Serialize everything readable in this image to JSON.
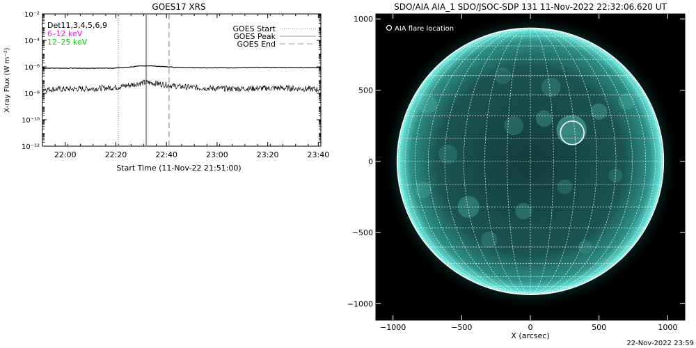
{
  "left_plot": {
    "title": "GOES17 XRS",
    "ylabel": "X-ray Flux (W m⁻²)",
    "xlabel": "Start Time (11-Nov-22 21:51:00)",
    "det_label": "Det11,3,4,5,6,9",
    "band_labels": [
      {
        "text": "6–12 keV",
        "color": "#ff00ff"
      },
      {
        "text": "12–25 keV",
        "color": "#00cc00"
      }
    ],
    "legend": [
      {
        "label": "GOES Start",
        "style": "dotted"
      },
      {
        "label": "GOES Peak",
        "style": "solid"
      },
      {
        "label": "GOES End",
        "style": "dashed"
      }
    ]
  },
  "right_plot": {
    "title": "SDO/AIA AIA_1 SDO/JSOC-SDP 131 11-Nov-2022 22:32:06.620 UT",
    "legend_label": "AIA flare location",
    "xlabel": "X (arcsec)",
    "timestamp": "22-Nov-2022 23:59"
  },
  "chart_data": [
    {
      "type": "line",
      "title": "GOES17 XRS",
      "xlabel": "Start Time (11-Nov-22 21:51:00)",
      "ylabel": "X-ray Flux (W m⁻²)",
      "y_scale": "log",
      "ylim": [
        1e-12,
        0.01
      ],
      "xlim": [
        "21:51",
        "23:41"
      ],
      "x_ticks": [
        "22:00",
        "22:20",
        "22:40",
        "23:00",
        "23:20",
        "23:40"
      ],
      "y_ticks": [
        {
          "value": 1e-12,
          "label": "10⁻¹²"
        },
        {
          "value": 1e-10,
          "label": "10⁻¹⁰"
        },
        {
          "value": 1e-08,
          "label": "10⁻⁸"
        },
        {
          "value": 1e-06,
          "label": "10⁻⁶"
        },
        {
          "value": 0.0001,
          "label": "10⁻⁴"
        },
        {
          "value": 0.01,
          "label": "10⁻²"
        }
      ],
      "series": [
        {
          "color": "#000000",
          "x": [
            "21:51",
            "22:10",
            "22:20",
            "22:25",
            "22:30",
            "22:33",
            "22:38",
            "22:45",
            "22:55",
            "23:05",
            "23:15",
            "23:25",
            "23:35",
            "23:41"
          ],
          "y": [
            8e-07,
            7.8e-07,
            8.1e-07,
            9.5e-07,
            1.15e-06,
            1.2e-06,
            1.05e-06,
            9e-07,
            8.5e-07,
            8.4e-07,
            9e-07,
            8.8e-07,
            8.6e-07,
            8.5e-07
          ]
        },
        {
          "color": "#000000",
          "x": [
            "21:51",
            "22:10",
            "22:20",
            "22:25",
            "22:30",
            "22:33",
            "22:38",
            "22:45",
            "22:55",
            "23:05",
            "23:15",
            "23:25",
            "23:35",
            "23:41"
          ],
          "y": [
            2e-08,
            2.2e-08,
            2.8e-08,
            4e-08,
            6e-08,
            6.5e-08,
            5e-08,
            3.2e-08,
            2.5e-08,
            2.2e-08,
            2.3e-08,
            2.5e-08,
            2.2e-08,
            1.9e-08
          ]
        }
      ],
      "vertical_markers": [
        {
          "label": "GOES Start",
          "x": "22:21",
          "style": "dotted",
          "color": "#999999"
        },
        {
          "label": "GOES Peak",
          "x": "22:32",
          "style": "solid",
          "color": "#999999"
        },
        {
          "label": "GOES End",
          "x": "22:41",
          "style": "dashed",
          "color": "#999999"
        }
      ],
      "legend_position": "top-right",
      "grid": false
    },
    {
      "type": "image",
      "title": "SDO/AIA AIA_1 SDO/JSOC-SDP 131 11-Nov-2022 22:32:06.620 UT",
      "xlabel": "X (arcsec)",
      "xlim": [
        -1125,
        1125
      ],
      "ylim": [
        -1115,
        1035
      ],
      "x_ticks": [
        -1000,
        -500,
        0,
        500,
        1000
      ],
      "y_ticks": [
        -1000,
        -500,
        0,
        500,
        1000
      ],
      "solar_radius_arcsec": 970,
      "grid_spacing_deg": 10,
      "flare_location": {
        "x": 305,
        "y": 200,
        "radius": 95
      },
      "background_color": "#000000",
      "disk_color": "#1f6f6a",
      "limb_color": "#6fe6dc",
      "grid": true
    }
  ]
}
